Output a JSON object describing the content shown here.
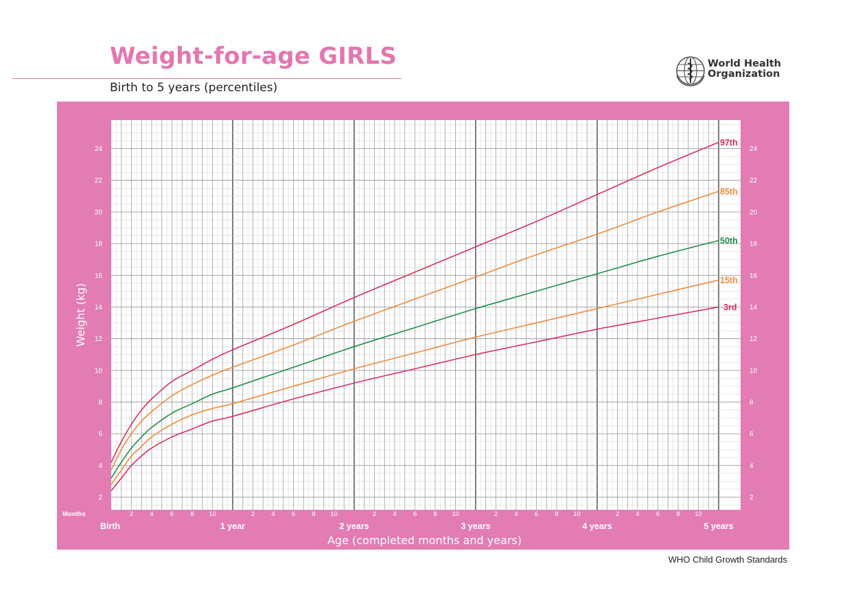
{
  "page": {
    "title": "Weight-for-age GIRLS",
    "subtitle": "Birth to 5 years (percentiles)",
    "organization_line1": "World Health",
    "organization_line2": "Organization",
    "footer": "WHO Child Growth Standards",
    "logo_icon": "who-emblem-icon"
  },
  "colors": {
    "brand_pink": "#e377b0",
    "panel_pink": "#e27cb2",
    "grid_line": "#9c9c9c",
    "red": "#dc2f5c",
    "orange": "#f08a3a",
    "green": "#1e8e4a"
  },
  "chart_data": {
    "type": "line",
    "title": "Weight-for-age GIRLS",
    "subtitle": "Birth to 5 years (percentiles)",
    "xlabel": "Age (completed months and years)",
    "ylabel": "Weight (kg)",
    "x_unit_label": "Months",
    "xlim": [
      0,
      60
    ],
    "ylim": [
      1.2,
      25.8
    ],
    "x_month_ticks": [
      2,
      4,
      6,
      8,
      10
    ],
    "x_year_labels": [
      {
        "month": 0,
        "label": "Birth"
      },
      {
        "month": 12,
        "label": "1 year"
      },
      {
        "month": 24,
        "label": "2 years"
      },
      {
        "month": 36,
        "label": "3 years"
      },
      {
        "month": 48,
        "label": "4 years"
      },
      {
        "month": 60,
        "label": "5 years"
      }
    ],
    "y_ticks": [
      2,
      4,
      6,
      8,
      10,
      12,
      14,
      16,
      18,
      20,
      22,
      24
    ],
    "grid": true,
    "x": [
      0,
      1,
      2,
      3,
      4,
      6,
      8,
      10,
      12,
      18,
      24,
      30,
      36,
      42,
      48,
      54,
      60
    ],
    "series": [
      {
        "name": "97th",
        "color": "#dc2f5c",
        "values": [
          4.2,
          5.5,
          6.6,
          7.5,
          8.2,
          9.3,
          10.0,
          10.7,
          11.3,
          12.9,
          14.6,
          16.2,
          17.8,
          19.4,
          21.1,
          22.8,
          24.4
        ]
      },
      {
        "name": "85th",
        "color": "#f08a3a",
        "values": [
          3.7,
          5.0,
          6.0,
          6.8,
          7.4,
          8.4,
          9.1,
          9.7,
          10.2,
          11.6,
          13.1,
          14.5,
          15.9,
          17.3,
          18.6,
          20.0,
          21.3
        ]
      },
      {
        "name": "50th",
        "color": "#1e8e4a",
        "values": [
          3.2,
          4.2,
          5.1,
          5.8,
          6.4,
          7.3,
          7.9,
          8.5,
          8.9,
          10.2,
          11.5,
          12.7,
          13.9,
          15.0,
          16.1,
          17.2,
          18.2
        ]
      },
      {
        "name": "15th",
        "color": "#f08a3a",
        "values": [
          2.8,
          3.7,
          4.6,
          5.2,
          5.8,
          6.6,
          7.2,
          7.6,
          7.9,
          9.0,
          10.1,
          11.1,
          12.1,
          13.0,
          13.9,
          14.8,
          15.7
        ]
      },
      {
        "name": "3rd",
        "color": "#dc2f5c",
        "values": [
          2.4,
          3.2,
          4.0,
          4.6,
          5.1,
          5.8,
          6.3,
          6.8,
          7.1,
          8.2,
          9.2,
          10.1,
          11.0,
          11.8,
          12.6,
          13.3,
          14.0
        ]
      }
    ]
  }
}
